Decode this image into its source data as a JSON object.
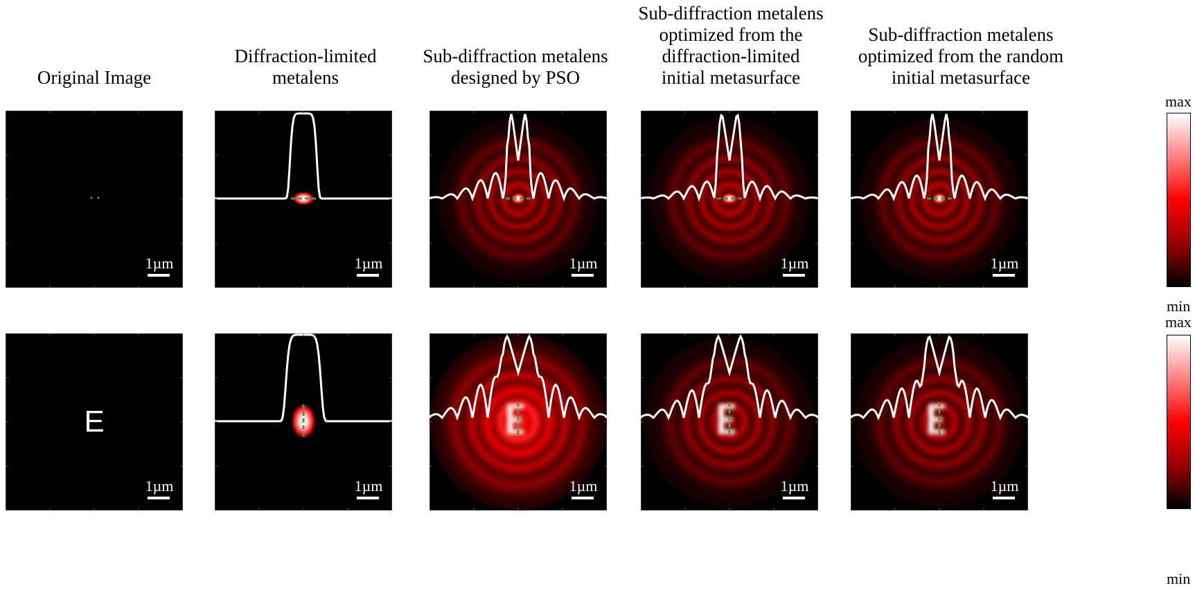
{
  "columns": [
    {
      "id": "original",
      "title": "Original Image"
    },
    {
      "id": "diffraction-limited",
      "title": "Diffraction-limited\nmetalens"
    },
    {
      "id": "pso",
      "title": "Sub-diffraction metalens\ndesigned by PSO"
    },
    {
      "id": "opt-diffraction",
      "title": "Sub-diffraction metalens\noptimized from the\ndiffraction-limited\ninitial metasurface"
    },
    {
      "id": "opt-random",
      "title": "Sub-diffraction metalens\noptimized from the random\ninitial metasurface"
    }
  ],
  "scale_bar_label": "1µm",
  "colorbar": {
    "max_label": "max",
    "min_label": "min",
    "colors": [
      "#ffffff",
      "#ff0000",
      "#000000"
    ]
  },
  "rows": [
    {
      "id": "two-points",
      "object": "two points"
    },
    {
      "id": "letter-e",
      "object": "E"
    }
  ],
  "colors": {
    "profile": "#ffffff",
    "cutline": "#3aa046",
    "background": "#000000"
  }
}
